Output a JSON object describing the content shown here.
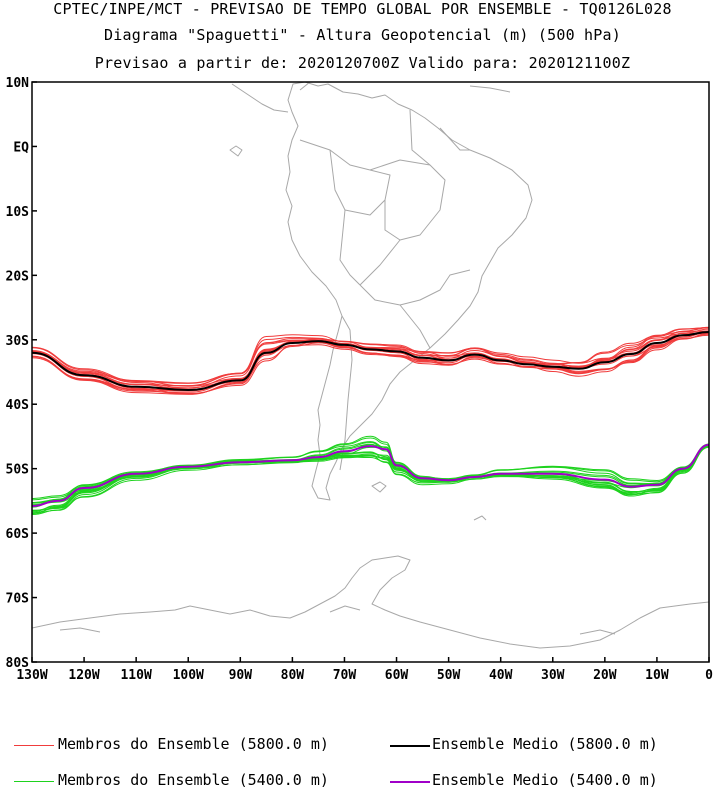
{
  "titles": {
    "line1": "CPTEC/INPE/MCT - PREVISAO DE TEMPO GLOBAL POR ENSEMBLE - TQ0126L028",
    "line2": "Diagrama \"Spaguetti\" - Altura Geopotencial (m) (500 hPa)",
    "line3": "Previsao a partir de: 2020120700Z  Valido para: 2020121100Z"
  },
  "axes": {
    "lat_labels": [
      "10N",
      "EQ",
      "10S",
      "20S",
      "30S",
      "40S",
      "50S",
      "60S",
      "70S",
      "80S"
    ],
    "lon_labels": [
      "130W",
      "120W",
      "110W",
      "100W",
      "90W",
      "80W",
      "70W",
      "60W",
      "50W",
      "40W",
      "30W",
      "20W",
      "10W",
      "0"
    ]
  },
  "legend": {
    "members_5800": "Membros do Ensemble (5800.0 m)",
    "mean_5800": "Ensemble Medio (5800.0 m)",
    "members_5400": "Membros do Ensemble (5400.0 m)",
    "mean_5400": "Ensemble Medio (5400.0 m)"
  },
  "colors": {
    "members_5800": "#f03c3c",
    "mean_5800": "#000000",
    "members_5400": "#1ed21e",
    "mean_5400": "#a000c8",
    "coastline": "#a8a8a8"
  },
  "chart_data": {
    "type": "line",
    "title": "Diagrama \"Spaguetti\" - Altura Geopotencial (m) (500 hPa)",
    "x_range_lon": [
      -130,
      0
    ],
    "y_range_lat": [
      -80,
      10
    ],
    "series": [
      {
        "name": "Ensemble Medio (5800.0 m)",
        "lon": [
          -130,
          -120,
          -110,
          -100,
          -90,
          -85,
          -80,
          -75,
          -70,
          -65,
          -60,
          -55,
          -50,
          -45,
          -40,
          -35,
          -30,
          -25,
          -20,
          -15,
          -10,
          -5,
          0
        ],
        "lat": [
          -32.0,
          -35.5,
          -37.3,
          -37.8,
          -36.3,
          -32.0,
          -30.5,
          -30.2,
          -30.8,
          -31.5,
          -31.8,
          -32.8,
          -33.2,
          -32.3,
          -33.2,
          -33.8,
          -34.2,
          -34.5,
          -33.5,
          -32.2,
          -30.5,
          -29.3,
          -28.8
        ]
      },
      {
        "name": "Ensemble Medio (5400.0 m)",
        "lon": [
          -130,
          -125,
          -120,
          -110,
          -100,
          -90,
          -80,
          -75,
          -70,
          -65,
          -62,
          -60,
          -55,
          -50,
          -45,
          -40,
          -30,
          -20,
          -15,
          -10,
          -5,
          0
        ],
        "lat": [
          -55.8,
          -55.0,
          -53.0,
          -50.8,
          -49.7,
          -49.0,
          -48.7,
          -48.2,
          -47.3,
          -46.5,
          -47.0,
          -49.5,
          -51.5,
          -51.8,
          -51.3,
          -50.8,
          -50.8,
          -51.7,
          -52.8,
          -52.5,
          -50.0,
          -46.3
        ]
      },
      {
        "name": "Membros do Ensemble (5800.0 m)",
        "members": 15,
        "spread_lat": [
          0.8,
          0.9,
          1.0,
          1.0,
          1.1,
          2.0,
          1.0,
          0.8,
          0.7,
          0.8,
          0.9,
          1.0,
          1.1,
          1.0,
          0.9,
          0.9,
          1.0,
          1.2,
          1.5,
          1.5,
          1.2,
          0.9,
          0.7
        ]
      },
      {
        "name": "Membros do Ensemble (5400.0 m)",
        "members": 15,
        "spread_lat": [
          1.2,
          1.3,
          1.2,
          0.8,
          0.5,
          0.5,
          0.5,
          0.8,
          1.0,
          1.6,
          1.8,
          1.2,
          0.8,
          0.5,
          0.4,
          0.6,
          1.0,
          1.3,
          1.3,
          1.1,
          0.6,
          0.3
        ]
      }
    ]
  }
}
